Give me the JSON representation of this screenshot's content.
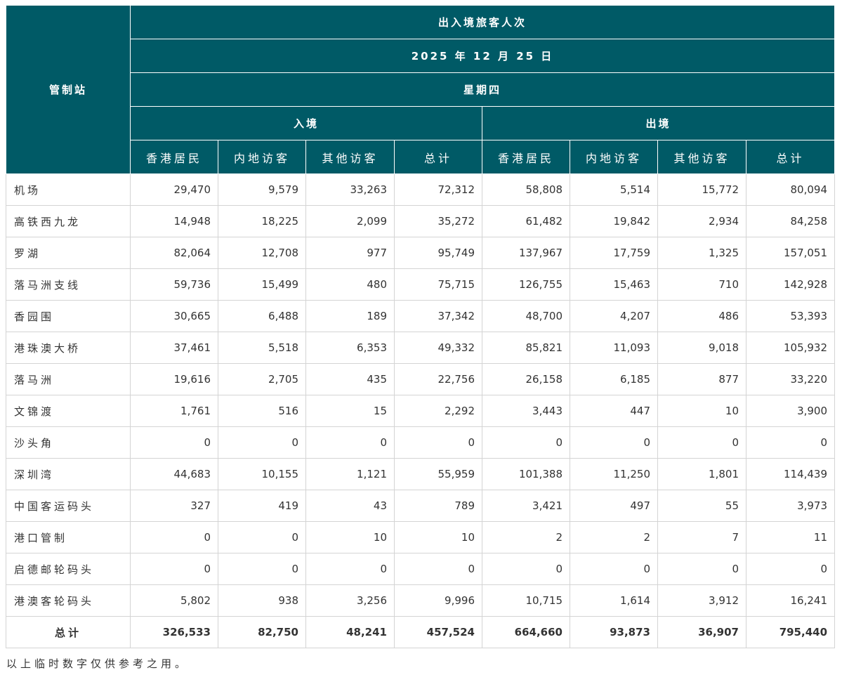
{
  "header": {
    "title": "出入境旅客人次",
    "date": "2025 年 12 月 25 日",
    "weekday": "星期四",
    "station_label": "管制站",
    "arrival": "入境",
    "departure": "出境",
    "columns": [
      "香港居民",
      "内地访客",
      "其他访客",
      "总计"
    ]
  },
  "rows": [
    {
      "name": "机场",
      "values": [
        "29,470",
        "9,579",
        "33,263",
        "72,312",
        "58,808",
        "5,514",
        "15,772",
        "80,094"
      ]
    },
    {
      "name": "高铁西九龙",
      "values": [
        "14,948",
        "18,225",
        "2,099",
        "35,272",
        "61,482",
        "19,842",
        "2,934",
        "84,258"
      ]
    },
    {
      "name": "罗湖",
      "values": [
        "82,064",
        "12,708",
        "977",
        "95,749",
        "137,967",
        "17,759",
        "1,325",
        "157,051"
      ]
    },
    {
      "name": "落马洲支线",
      "values": [
        "59,736",
        "15,499",
        "480",
        "75,715",
        "126,755",
        "15,463",
        "710",
        "142,928"
      ]
    },
    {
      "name": "香园围",
      "values": [
        "30,665",
        "6,488",
        "189",
        "37,342",
        "48,700",
        "4,207",
        "486",
        "53,393"
      ]
    },
    {
      "name": "港珠澳大桥",
      "values": [
        "37,461",
        "5,518",
        "6,353",
        "49,332",
        "85,821",
        "11,093",
        "9,018",
        "105,932"
      ]
    },
    {
      "name": "落马洲",
      "values": [
        "19,616",
        "2,705",
        "435",
        "22,756",
        "26,158",
        "6,185",
        "877",
        "33,220"
      ]
    },
    {
      "name": "文锦渡",
      "values": [
        "1,761",
        "516",
        "15",
        "2,292",
        "3,443",
        "447",
        "10",
        "3,900"
      ]
    },
    {
      "name": "沙头角",
      "values": [
        "0",
        "0",
        "0",
        "0",
        "0",
        "0",
        "0",
        "0"
      ]
    },
    {
      "name": "深圳湾",
      "values": [
        "44,683",
        "10,155",
        "1,121",
        "55,959",
        "101,388",
        "11,250",
        "1,801",
        "114,439"
      ]
    },
    {
      "name": "中国客运码头",
      "values": [
        "327",
        "419",
        "43",
        "789",
        "3,421",
        "497",
        "55",
        "3,973"
      ]
    },
    {
      "name": "港口管制",
      "values": [
        "0",
        "0",
        "10",
        "10",
        "2",
        "2",
        "7",
        "11"
      ]
    },
    {
      "name": "启德邮轮码头",
      "values": [
        "0",
        "0",
        "0",
        "0",
        "0",
        "0",
        "0",
        "0"
      ]
    },
    {
      "name": "港澳客轮码头",
      "values": [
        "5,802",
        "938",
        "3,256",
        "9,996",
        "10,715",
        "1,614",
        "3,912",
        "16,241"
      ]
    }
  ],
  "total": {
    "name": "总计",
    "values": [
      "326,533",
      "82,750",
      "48,241",
      "457,524",
      "664,660",
      "93,873",
      "36,907",
      "795,440"
    ]
  },
  "note": "以上临时数字仅供参考之用。",
  "colors": {
    "header_bg": "#005a66",
    "header_text": "#ffffff",
    "border": "#d4d4d4"
  }
}
